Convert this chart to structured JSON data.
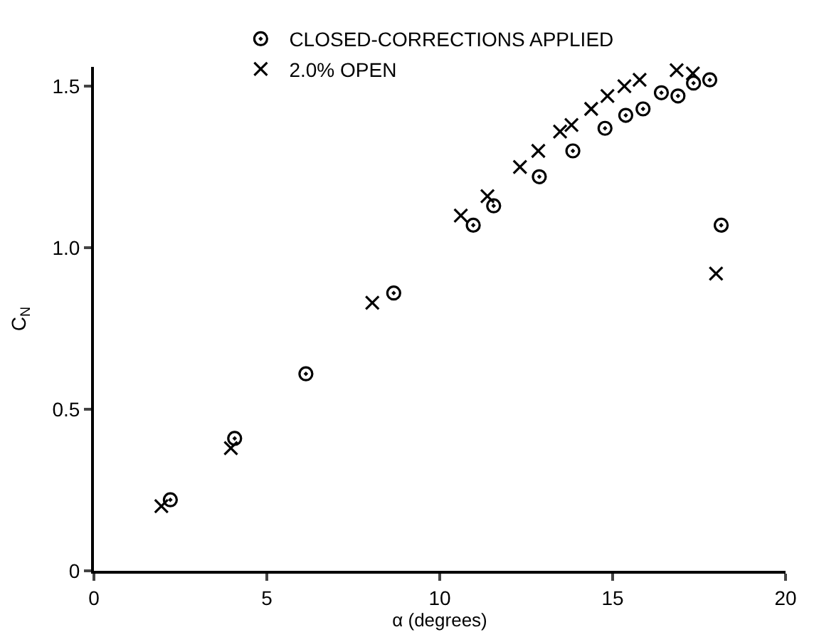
{
  "chart_data": {
    "type": "scatter",
    "xlabel": "α (degrees)",
    "ylabel": "C$_{N}$",
    "xlim": [
      0,
      20
    ],
    "xticks": [
      0,
      5,
      10,
      15,
      20
    ],
    "ylim": [
      0,
      1.56
    ],
    "yticks": [
      0,
      0.5,
      {
        "value": 1.0,
        "label": "1.0"
      },
      1.5
    ],
    "legend": "top",
    "series": [
      {
        "name": "CLOSED-CORRECTIONS APPLIED",
        "color": "#000000",
        "marker": "circle",
        "x": [
          2.21,
          4.07,
          6.13,
          8.67,
          10.97,
          11.56,
          12.88,
          13.85,
          14.78,
          15.38,
          15.88,
          16.41,
          16.89,
          17.34,
          17.81,
          18.14
        ],
        "values": [
          0.22,
          0.41,
          0.61,
          0.86,
          1.07,
          1.13,
          1.22,
          1.3,
          1.37,
          1.41,
          1.43,
          1.48,
          1.47,
          1.51,
          1.52,
          1.07
        ]
      },
      {
        "name": "2.0% OPEN",
        "color": "#000000",
        "marker": "cross",
        "x": [
          1.95,
          3.96,
          8.05,
          10.61,
          11.38,
          12.32,
          12.85,
          13.48,
          13.81,
          14.38,
          14.85,
          15.34,
          15.78,
          16.85,
          17.32,
          17.99
        ],
        "values": [
          0.2,
          0.38,
          0.83,
          1.1,
          1.16,
          1.25,
          1.3,
          1.36,
          1.38,
          1.43,
          1.47,
          1.5,
          1.52,
          1.55,
          1.54,
          0.92
        ]
      }
    ]
  }
}
